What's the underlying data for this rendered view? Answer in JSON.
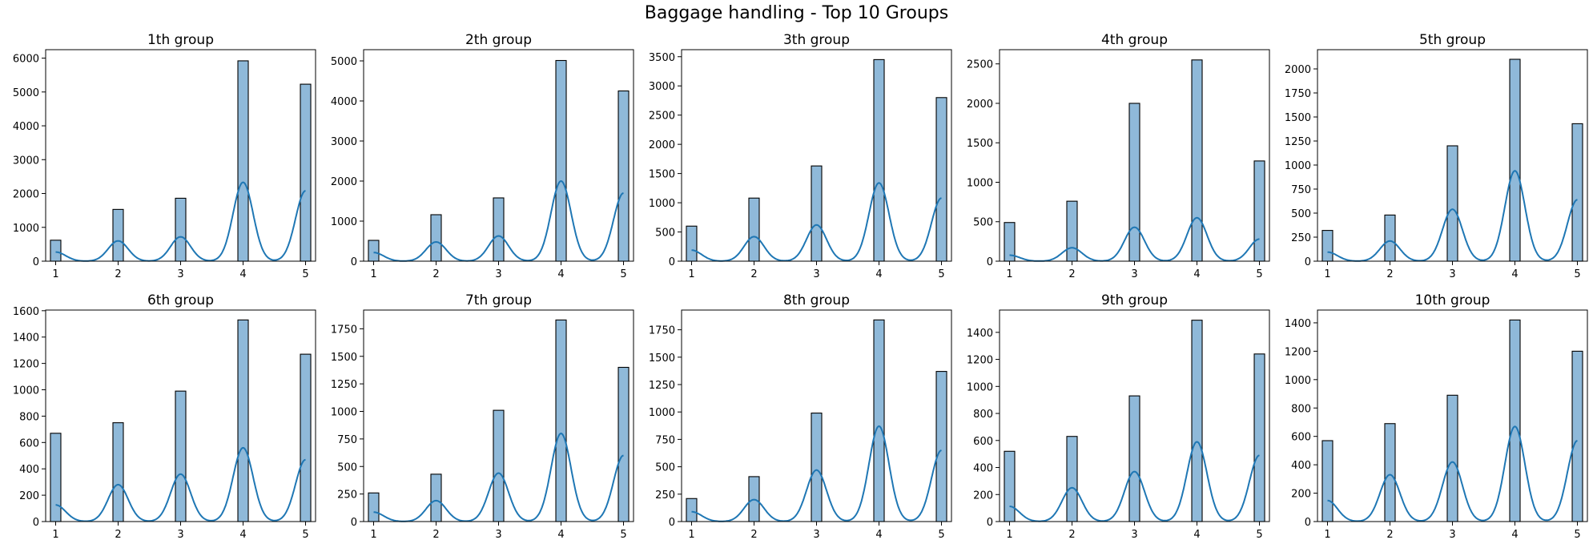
{
  "figure_title": "Baggage handling - Top 10 Groups",
  "chart_data": [
    {
      "type": "bar",
      "title": "1th group",
      "categories": [
        1,
        2,
        3,
        4,
        5
      ],
      "values": [
        620,
        1530,
        1860,
        5920,
        5230
      ],
      "yticks": [
        0,
        1000,
        2000,
        3000,
        4000,
        5000,
        6000
      ],
      "ylim": [
        0,
        6250
      ],
      "kde_peaks": [
        600,
        720,
        2330,
        2080
      ],
      "bar_color": "#8fb9d9",
      "kde_color": "#1f77b4"
    },
    {
      "type": "bar",
      "title": "2th group",
      "categories": [
        1,
        2,
        3,
        4,
        5
      ],
      "values": [
        520,
        1160,
        1580,
        5010,
        4250
      ],
      "yticks": [
        0,
        1000,
        2000,
        3000,
        4000,
        5000
      ],
      "ylim": [
        0,
        5280
      ],
      "kde_peaks": [
        480,
        630,
        2000,
        1700
      ],
      "bar_color": "#8fb9d9",
      "kde_color": "#1f77b4"
    },
    {
      "type": "bar",
      "title": "3th group",
      "categories": [
        1,
        2,
        3,
        4,
        5
      ],
      "values": [
        600,
        1080,
        1630,
        3450,
        2800
      ],
      "yticks": [
        0,
        500,
        1000,
        1500,
        2000,
        2500,
        3000,
        3500
      ],
      "ylim": [
        0,
        3620
      ],
      "kde_peaks": [
        420,
        620,
        1340,
        1080
      ],
      "bar_color": "#8fb9d9",
      "kde_color": "#1f77b4"
    },
    {
      "type": "bar",
      "title": "4th group",
      "categories": [
        1,
        2,
        3,
        4,
        5
      ],
      "values": [
        490,
        760,
        2000,
        2550,
        1270
      ],
      "yticks": [
        0,
        500,
        1000,
        1500,
        2000,
        2500
      ],
      "ylim": [
        0,
        2680
      ],
      "kde_peaks": [
        170,
        430,
        550,
        280
      ],
      "bar_color": "#8fb9d9",
      "kde_color": "#1f77b4"
    },
    {
      "type": "bar",
      "title": "5th group",
      "categories": [
        1,
        2,
        3,
        4,
        5
      ],
      "values": [
        320,
        480,
        1200,
        2100,
        1430
      ],
      "yticks": [
        0,
        250,
        500,
        750,
        1000,
        1250,
        1500,
        1750,
        2000
      ],
      "ylim": [
        0,
        2200
      ],
      "kde_peaks": [
        210,
        540,
        940,
        640
      ],
      "bar_color": "#8fb9d9",
      "kde_color": "#1f77b4"
    },
    {
      "type": "bar",
      "title": "6th group",
      "categories": [
        1,
        2,
        3,
        4,
        5
      ],
      "values": [
        670,
        750,
        990,
        1530,
        1270
      ],
      "yticks": [
        0,
        200,
        400,
        600,
        800,
        1000,
        1200,
        1400,
        1600
      ],
      "ylim": [
        0,
        1605
      ],
      "kde_peaks": [
        280,
        360,
        560,
        470
      ],
      "bar_color": "#8fb9d9",
      "kde_color": "#1f77b4"
    },
    {
      "type": "bar",
      "title": "7th group",
      "categories": [
        1,
        2,
        3,
        4,
        5
      ],
      "values": [
        260,
        430,
        1010,
        1830,
        1400
      ],
      "yticks": [
        0,
        250,
        500,
        750,
        1000,
        1250,
        1500,
        1750
      ],
      "ylim": [
        0,
        1920
      ],
      "kde_peaks": [
        190,
        440,
        800,
        600
      ],
      "bar_color": "#8fb9d9",
      "kde_color": "#1f77b4"
    },
    {
      "type": "bar",
      "title": "8th group",
      "categories": [
        1,
        2,
        3,
        4,
        5
      ],
      "values": [
        210,
        410,
        990,
        1840,
        1370
      ],
      "yticks": [
        0,
        250,
        500,
        750,
        1000,
        1250,
        1500,
        1750
      ],
      "ylim": [
        0,
        1930
      ],
      "kde_peaks": [
        200,
        470,
        870,
        650
      ],
      "bar_color": "#8fb9d9",
      "kde_color": "#1f77b4"
    },
    {
      "type": "bar",
      "title": "9th group",
      "categories": [
        1,
        2,
        3,
        4,
        5
      ],
      "values": [
        520,
        630,
        930,
        1490,
        1240
      ],
      "yticks": [
        0,
        200,
        400,
        600,
        800,
        1000,
        1200,
        1400
      ],
      "ylim": [
        0,
        1565
      ],
      "kde_peaks": [
        250,
        370,
        590,
        490
      ],
      "bar_color": "#8fb9d9",
      "kde_color": "#1f77b4"
    },
    {
      "type": "bar",
      "title": "10th group",
      "categories": [
        1,
        2,
        3,
        4,
        5
      ],
      "values": [
        570,
        690,
        890,
        1420,
        1200
      ],
      "yticks": [
        0,
        200,
        400,
        600,
        800,
        1000,
        1200,
        1400
      ],
      "ylim": [
        0,
        1490
      ],
      "kde_peaks": [
        330,
        420,
        670,
        570
      ],
      "bar_color": "#8fb9d9",
      "kde_color": "#1f77b4"
    }
  ]
}
